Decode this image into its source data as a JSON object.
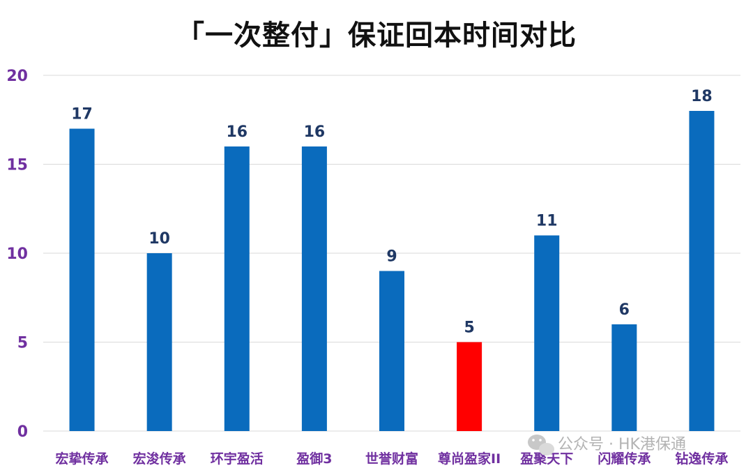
{
  "chart_data": {
    "type": "bar",
    "title": "「一次整付」保证回本时间对比",
    "xlabel": "",
    "ylabel": "",
    "categories": [
      "宏挚传承",
      "宏浚传承",
      "环宇盈活",
      "盈御3",
      "世誉财富",
      "尊尚盈家II",
      "盈聚天下",
      "闪耀传承",
      "钻逸传承"
    ],
    "values": [
      17,
      10,
      16,
      16,
      9,
      5,
      11,
      6,
      18
    ],
    "ylim": [
      0,
      20
    ],
    "yticks": [
      0,
      5,
      10,
      15,
      20
    ],
    "grid": true,
    "legend": "none",
    "colors": {
      "bar": "#0a6bbd",
      "highlight": "#ff0000",
      "highlight_category": "尊尚盈家II",
      "tick_label": "#7030a0",
      "data_label": "#1f3864",
      "grid": "#d9d9d9"
    }
  },
  "watermark": {
    "text": "公众号 · HK港保通",
    "icon": "wechat-icon"
  }
}
